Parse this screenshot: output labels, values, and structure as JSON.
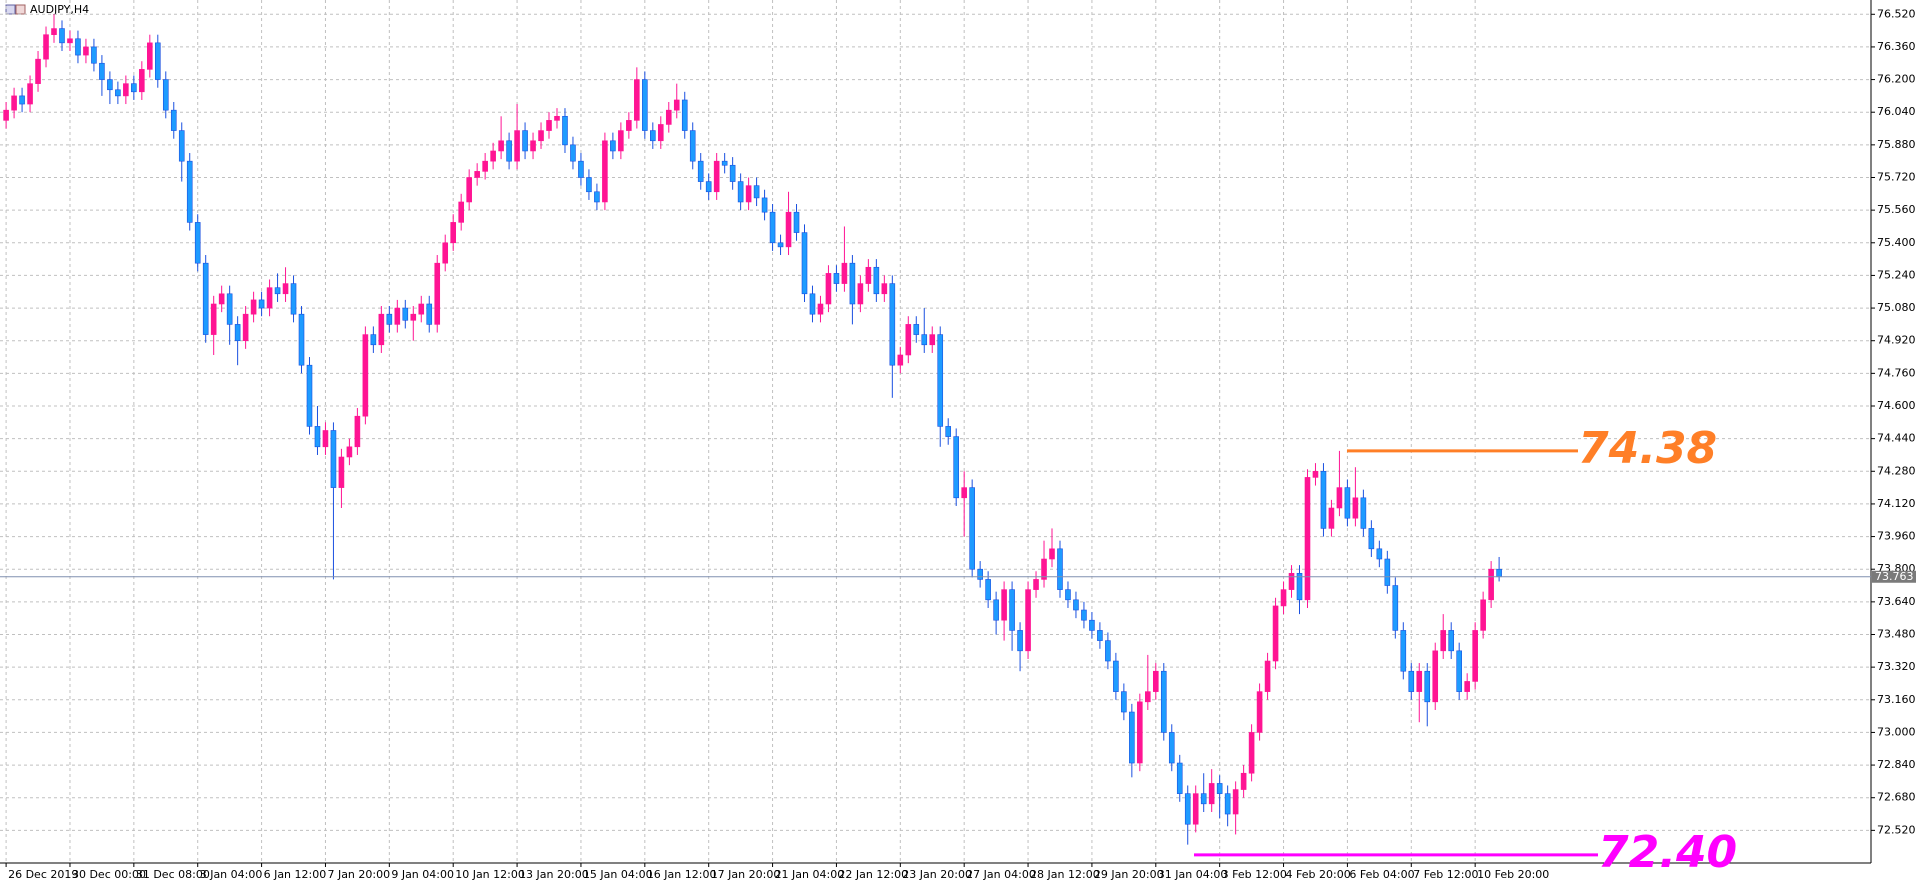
{
  "chart_data": {
    "type": "candlestick",
    "title": "AUDJPY,H4",
    "categories": [
      "26 Dec 2019",
      null,
      null,
      null,
      null,
      null,
      null,
      null,
      "30 Dec 00:00",
      null,
      null,
      null,
      null,
      null,
      null,
      null,
      "31 Dec 08:00",
      null,
      null,
      null,
      null,
      null,
      null,
      null,
      "3 Jan 04:00",
      null,
      null,
      null,
      null,
      null,
      null,
      null,
      "6 Jan 12:00",
      null,
      null,
      null,
      null,
      null,
      null,
      null,
      "7 Jan 20:00",
      null,
      null,
      null,
      null,
      null,
      null,
      null,
      "9 Jan 04:00",
      null,
      null,
      null,
      null,
      null,
      null,
      null,
      "10 Jan 12:00",
      null,
      null,
      null,
      null,
      null,
      null,
      null,
      "13 Jan 20:00",
      null,
      null,
      null,
      null,
      null,
      null,
      null,
      "15 Jan 04:00",
      null,
      null,
      null,
      null,
      null,
      null,
      null,
      "16 Jan 12:00",
      null,
      null,
      null,
      null,
      null,
      null,
      null,
      "17 Jan 20:00",
      null,
      null,
      null,
      null,
      null,
      null,
      null,
      "21 Jan 04:00",
      null,
      null,
      null,
      null,
      null,
      null,
      null,
      "22 Jan 12:00",
      null,
      null,
      null,
      null,
      null,
      null,
      null,
      "23 Jan 20:00",
      null,
      null,
      null,
      null,
      null,
      null,
      null,
      "27 Jan 04:00",
      null,
      null,
      null,
      null,
      null,
      null,
      null,
      "28 Jan 12:00",
      null,
      null,
      null,
      null,
      null,
      null,
      null,
      "29 Jan 20:00",
      null,
      null,
      null,
      null,
      null,
      null,
      null,
      "31 Jan 04:00",
      null,
      null,
      null,
      null,
      null,
      null,
      null,
      "3 Feb 12:00",
      null,
      null,
      null,
      null,
      null,
      null,
      null,
      "4 Feb 20:00",
      null,
      null,
      null,
      null,
      null,
      null,
      null,
      "6 Feb 04:00",
      null,
      null,
      null,
      null,
      null,
      null,
      null,
      "7 Feb 12:00",
      null,
      null,
      null,
      null,
      null,
      null,
      null,
      "10 Feb 20:00",
      null,
      null,
      null
    ],
    "ohlc": [
      [
        76.0,
        76.09,
        75.96,
        76.05
      ],
      [
        76.05,
        76.16,
        76.01,
        76.12
      ],
      [
        76.12,
        76.16,
        76.04,
        76.08
      ],
      [
        76.08,
        76.22,
        76.04,
        76.18
      ],
      [
        76.18,
        76.34,
        76.14,
        76.3
      ],
      [
        76.3,
        76.46,
        76.26,
        76.42
      ],
      [
        76.42,
        76.52,
        76.38,
        76.45
      ],
      [
        76.45,
        76.49,
        76.34,
        76.38
      ],
      [
        76.38,
        76.44,
        76.34,
        76.4
      ],
      [
        76.4,
        76.44,
        76.28,
        76.32
      ],
      [
        76.32,
        76.4,
        76.28,
        76.36
      ],
      [
        76.36,
        76.4,
        76.24,
        76.28
      ],
      [
        76.28,
        76.32,
        76.12,
        76.2
      ],
      [
        76.2,
        76.24,
        76.08,
        76.15
      ],
      [
        76.15,
        76.19,
        76.08,
        76.12
      ],
      [
        76.12,
        76.22,
        76.08,
        76.18
      ],
      [
        76.18,
        76.22,
        76.1,
        76.14
      ],
      [
        76.14,
        76.29,
        76.1,
        76.25
      ],
      [
        76.25,
        76.42,
        76.21,
        76.38
      ],
      [
        76.38,
        76.42,
        76.16,
        76.2
      ],
      [
        76.2,
        76.24,
        76.01,
        76.05
      ],
      [
        76.05,
        76.09,
        75.91,
        75.95
      ],
      [
        75.95,
        75.99,
        75.7,
        75.8
      ],
      [
        75.8,
        75.84,
        75.46,
        75.5
      ],
      [
        75.5,
        75.54,
        75.26,
        75.3
      ],
      [
        75.3,
        75.34,
        74.91,
        74.95
      ],
      [
        74.95,
        75.14,
        74.85,
        75.1
      ],
      [
        75.1,
        75.19,
        75.06,
        75.15
      ],
      [
        75.15,
        75.19,
        74.9,
        75.0
      ],
      [
        75.0,
        75.04,
        74.8,
        74.92
      ],
      [
        74.92,
        75.09,
        74.88,
        75.05
      ],
      [
        75.05,
        75.16,
        75.01,
        75.12
      ],
      [
        75.12,
        75.16,
        75.04,
        75.08
      ],
      [
        75.08,
        75.22,
        75.04,
        75.18
      ],
      [
        75.18,
        75.25,
        75.11,
        75.15
      ],
      [
        75.15,
        75.28,
        75.11,
        75.2
      ],
      [
        75.2,
        75.24,
        75.01,
        75.05
      ],
      [
        75.05,
        75.09,
        74.76,
        74.8
      ],
      [
        74.8,
        74.84,
        74.46,
        74.5
      ],
      [
        74.5,
        74.6,
        74.36,
        74.4
      ],
      [
        74.4,
        74.52,
        74.36,
        74.48
      ],
      [
        74.48,
        74.52,
        73.75,
        74.2
      ],
      [
        74.2,
        74.39,
        74.1,
        74.35
      ],
      [
        74.35,
        74.44,
        74.31,
        74.4
      ],
      [
        74.4,
        74.59,
        74.36,
        74.55
      ],
      [
        74.55,
        74.99,
        74.51,
        74.95
      ],
      [
        74.95,
        74.99,
        74.86,
        74.9
      ],
      [
        74.9,
        75.09,
        74.86,
        75.05
      ],
      [
        75.05,
        75.09,
        74.96,
        75.0
      ],
      [
        75.0,
        75.12,
        74.96,
        75.08
      ],
      [
        75.08,
        75.12,
        74.98,
        75.02
      ],
      [
        75.02,
        75.09,
        74.92,
        75.05
      ],
      [
        75.05,
        75.14,
        75.01,
        75.1
      ],
      [
        75.1,
        75.14,
        74.96,
        75.0
      ],
      [
        75.0,
        75.34,
        74.96,
        75.3
      ],
      [
        75.3,
        75.44,
        75.26,
        75.4
      ],
      [
        75.4,
        75.54,
        75.36,
        75.5
      ],
      [
        75.5,
        75.64,
        75.46,
        75.6
      ],
      [
        75.6,
        75.76,
        75.56,
        75.72
      ],
      [
        75.72,
        75.79,
        75.68,
        75.75
      ],
      [
        75.75,
        75.84,
        75.71,
        75.8
      ],
      [
        75.8,
        75.89,
        75.76,
        75.85
      ],
      [
        75.85,
        76.02,
        75.81,
        75.9
      ],
      [
        75.9,
        75.94,
        75.76,
        75.8
      ],
      [
        75.8,
        76.08,
        75.76,
        75.95
      ],
      [
        75.95,
        75.99,
        75.81,
        75.85
      ],
      [
        75.85,
        75.94,
        75.81,
        75.9
      ],
      [
        75.9,
        75.99,
        75.86,
        75.95
      ],
      [
        75.95,
        76.04,
        75.91,
        76.0
      ],
      [
        76.0,
        76.06,
        75.96,
        76.02
      ],
      [
        76.02,
        76.06,
        75.84,
        75.88
      ],
      [
        75.88,
        75.92,
        75.76,
        75.8
      ],
      [
        75.8,
        75.84,
        75.68,
        75.72
      ],
      [
        75.72,
        75.76,
        75.61,
        75.65
      ],
      [
        75.65,
        75.69,
        75.56,
        75.6
      ],
      [
        75.6,
        75.94,
        75.56,
        75.9
      ],
      [
        75.9,
        75.94,
        75.81,
        75.85
      ],
      [
        75.85,
        75.99,
        75.81,
        75.95
      ],
      [
        75.95,
        76.04,
        75.91,
        76.0
      ],
      [
        76.0,
        76.26,
        75.96,
        76.2
      ],
      [
        76.2,
        76.24,
        75.91,
        75.95
      ],
      [
        75.95,
        75.99,
        75.86,
        75.9
      ],
      [
        75.9,
        76.02,
        75.86,
        75.98
      ],
      [
        75.98,
        76.09,
        75.94,
        76.05
      ],
      [
        76.05,
        76.18,
        76.01,
        76.1
      ],
      [
        76.1,
        76.14,
        75.91,
        75.95
      ],
      [
        75.95,
        75.99,
        75.76,
        75.8
      ],
      [
        75.8,
        75.84,
        75.66,
        75.7
      ],
      [
        75.7,
        75.74,
        75.61,
        75.65
      ],
      [
        75.65,
        75.84,
        75.61,
        75.8
      ],
      [
        75.8,
        75.84,
        75.74,
        75.78
      ],
      [
        75.78,
        75.82,
        75.66,
        75.7
      ],
      [
        75.7,
        75.74,
        75.56,
        75.6
      ],
      [
        75.6,
        75.72,
        75.56,
        75.68
      ],
      [
        75.68,
        75.72,
        75.58,
        75.62
      ],
      [
        75.62,
        75.66,
        75.51,
        75.55
      ],
      [
        75.55,
        75.59,
        75.36,
        75.4
      ],
      [
        75.4,
        75.44,
        75.34,
        75.38
      ],
      [
        75.38,
        75.65,
        75.34,
        75.55
      ],
      [
        75.55,
        75.59,
        75.41,
        75.45
      ],
      [
        75.45,
        75.49,
        75.11,
        75.15
      ],
      [
        75.15,
        75.19,
        75.01,
        75.05
      ],
      [
        75.05,
        75.14,
        75.01,
        75.1
      ],
      [
        75.1,
        75.29,
        75.06,
        75.25
      ],
      [
        75.25,
        75.29,
        75.16,
        75.2
      ],
      [
        75.2,
        75.48,
        75.16,
        75.3
      ],
      [
        75.3,
        75.34,
        75.0,
        75.1
      ],
      [
        75.1,
        75.24,
        75.06,
        75.2
      ],
      [
        75.2,
        75.32,
        75.16,
        75.28
      ],
      [
        75.28,
        75.32,
        75.11,
        75.15
      ],
      [
        75.15,
        75.24,
        75.11,
        75.2
      ],
      [
        75.2,
        75.24,
        74.64,
        74.8
      ],
      [
        74.8,
        74.89,
        74.76,
        74.85
      ],
      [
        74.85,
        75.04,
        74.81,
        75.0
      ],
      [
        75.0,
        75.04,
        74.91,
        74.95
      ],
      [
        74.95,
        75.08,
        74.86,
        74.9
      ],
      [
        74.9,
        74.99,
        74.86,
        74.95
      ],
      [
        74.95,
        74.99,
        74.4,
        74.5
      ],
      [
        74.5,
        74.54,
        74.41,
        74.45
      ],
      [
        74.45,
        74.49,
        74.11,
        74.15
      ],
      [
        74.15,
        74.28,
        73.96,
        74.2
      ],
      [
        74.2,
        74.24,
        73.76,
        73.8
      ],
      [
        73.8,
        73.84,
        73.71,
        73.75
      ],
      [
        73.75,
        73.79,
        73.61,
        73.65
      ],
      [
        73.65,
        73.69,
        73.48,
        73.55
      ],
      [
        73.55,
        73.74,
        73.45,
        73.7
      ],
      [
        73.7,
        73.74,
        73.4,
        73.5
      ],
      [
        73.5,
        73.54,
        73.3,
        73.4
      ],
      [
        73.4,
        73.74,
        73.36,
        73.7
      ],
      [
        73.7,
        73.79,
        73.66,
        73.75
      ],
      [
        73.75,
        73.94,
        73.71,
        73.85
      ],
      [
        73.85,
        74.0,
        73.81,
        73.9
      ],
      [
        73.9,
        73.94,
        73.66,
        73.7
      ],
      [
        73.7,
        73.74,
        73.61,
        73.65
      ],
      [
        73.65,
        73.69,
        73.56,
        73.6
      ],
      [
        73.6,
        73.64,
        73.51,
        73.55
      ],
      [
        73.55,
        73.59,
        73.46,
        73.5
      ],
      [
        73.5,
        73.54,
        73.41,
        73.45
      ],
      [
        73.45,
        73.49,
        73.31,
        73.35
      ],
      [
        73.35,
        73.39,
        73.16,
        73.2
      ],
      [
        73.2,
        73.24,
        73.06,
        73.1
      ],
      [
        73.1,
        73.14,
        72.78,
        72.85
      ],
      [
        72.85,
        73.19,
        72.81,
        73.15
      ],
      [
        73.15,
        73.38,
        73.11,
        73.2
      ],
      [
        73.2,
        73.34,
        73.16,
        73.3
      ],
      [
        73.3,
        73.34,
        72.96,
        73.0
      ],
      [
        73.0,
        73.04,
        72.81,
        72.85
      ],
      [
        72.85,
        72.89,
        72.66,
        72.7
      ],
      [
        72.7,
        72.74,
        72.45,
        72.55
      ],
      [
        72.55,
        72.74,
        72.51,
        72.7
      ],
      [
        72.7,
        72.8,
        72.61,
        72.65
      ],
      [
        72.65,
        72.82,
        72.61,
        72.75
      ],
      [
        72.75,
        72.79,
        72.58,
        72.7
      ],
      [
        72.7,
        72.74,
        72.54,
        72.6
      ],
      [
        72.6,
        72.76,
        72.5,
        72.72
      ],
      [
        72.72,
        72.84,
        72.68,
        72.8
      ],
      [
        72.8,
        73.04,
        72.76,
        73.0
      ],
      [
        73.0,
        73.24,
        72.96,
        73.2
      ],
      [
        73.2,
        73.39,
        73.16,
        73.35
      ],
      [
        73.35,
        73.66,
        73.31,
        73.62
      ],
      [
        73.62,
        73.74,
        73.58,
        73.7
      ],
      [
        73.7,
        73.82,
        73.66,
        73.78
      ],
      [
        73.78,
        73.82,
        73.58,
        73.65
      ],
      [
        73.65,
        74.29,
        73.61,
        74.25
      ],
      [
        74.25,
        74.32,
        74.21,
        74.28
      ],
      [
        74.28,
        74.32,
        73.96,
        74.0
      ],
      [
        74.0,
        74.14,
        73.96,
        74.1
      ],
      [
        74.1,
        74.38,
        74.06,
        74.2
      ],
      [
        74.2,
        74.24,
        74.01,
        74.05
      ],
      [
        74.05,
        74.3,
        74.01,
        74.15
      ],
      [
        74.15,
        74.19,
        73.96,
        74.0
      ],
      [
        74.0,
        74.04,
        73.86,
        73.9
      ],
      [
        73.9,
        73.94,
        73.81,
        73.85
      ],
      [
        73.85,
        73.89,
        73.68,
        73.72
      ],
      [
        73.72,
        73.76,
        73.46,
        73.5
      ],
      [
        73.5,
        73.54,
        73.26,
        73.3
      ],
      [
        73.3,
        73.34,
        73.16,
        73.2
      ],
      [
        73.2,
        73.34,
        73.05,
        73.3
      ],
      [
        73.3,
        73.34,
        73.03,
        73.15
      ],
      [
        73.15,
        73.44,
        73.11,
        73.4
      ],
      [
        73.4,
        73.58,
        73.36,
        73.5
      ],
      [
        73.5,
        73.54,
        73.36,
        73.4
      ],
      [
        73.4,
        73.44,
        73.16,
        73.2
      ],
      [
        73.2,
        73.29,
        73.16,
        73.25
      ],
      [
        73.25,
        73.54,
        73.21,
        73.5
      ],
      [
        73.5,
        73.69,
        73.46,
        73.65
      ],
      [
        73.65,
        73.84,
        73.61,
        73.8
      ],
      [
        73.8,
        73.86,
        73.74,
        73.763
      ]
    ],
    "up_color": "#ff1493",
    "down_color": "#1e9bff",
    "ylim": [
      72.36,
      76.59
    ],
    "yticks": [
      {
        "value": 76.52,
        "label": "76.520"
      },
      {
        "value": 76.36,
        "label": "76.360"
      },
      {
        "value": 76.2,
        "label": "76.200"
      },
      {
        "value": 76.04,
        "label": "76.040"
      },
      {
        "value": 75.88,
        "label": "75.880"
      },
      {
        "value": 75.72,
        "label": "75.720"
      },
      {
        "value": 75.56,
        "label": "75.560"
      },
      {
        "value": 75.4,
        "label": "75.400"
      },
      {
        "value": 75.24,
        "label": "75.240"
      },
      {
        "value": 75.08,
        "label": "75.080"
      },
      {
        "value": 74.92,
        "label": "74.920"
      },
      {
        "value": 74.76,
        "label": "74.760"
      },
      {
        "value": 74.6,
        "label": "74.600"
      },
      {
        "value": 74.44,
        "label": "74.440"
      },
      {
        "value": 74.28,
        "label": "74.280"
      },
      {
        "value": 74.12,
        "label": "74.120"
      },
      {
        "value": 73.96,
        "label": "73.960"
      },
      {
        "value": 73.8,
        "label": "73.800"
      },
      {
        "value": 73.64,
        "label": "73.640"
      },
      {
        "value": 73.48,
        "label": "73.480"
      },
      {
        "value": 73.32,
        "label": "73.320"
      },
      {
        "value": 73.16,
        "label": "73.160"
      },
      {
        "value": 73.0,
        "label": "73.000"
      },
      {
        "value": 72.84,
        "label": "72.840"
      },
      {
        "value": 72.68,
        "label": "72.680"
      },
      {
        "value": 72.52,
        "label": "72.520"
      }
    ],
    "grid": true,
    "last_price": {
      "value": 73.763,
      "label": "73.763"
    },
    "levels": [
      {
        "value": 74.38,
        "label": "74.38",
        "color": "#ff7f27"
      },
      {
        "value": 72.4,
        "label": "72.40",
        "color": "#ff00ff"
      }
    ]
  }
}
